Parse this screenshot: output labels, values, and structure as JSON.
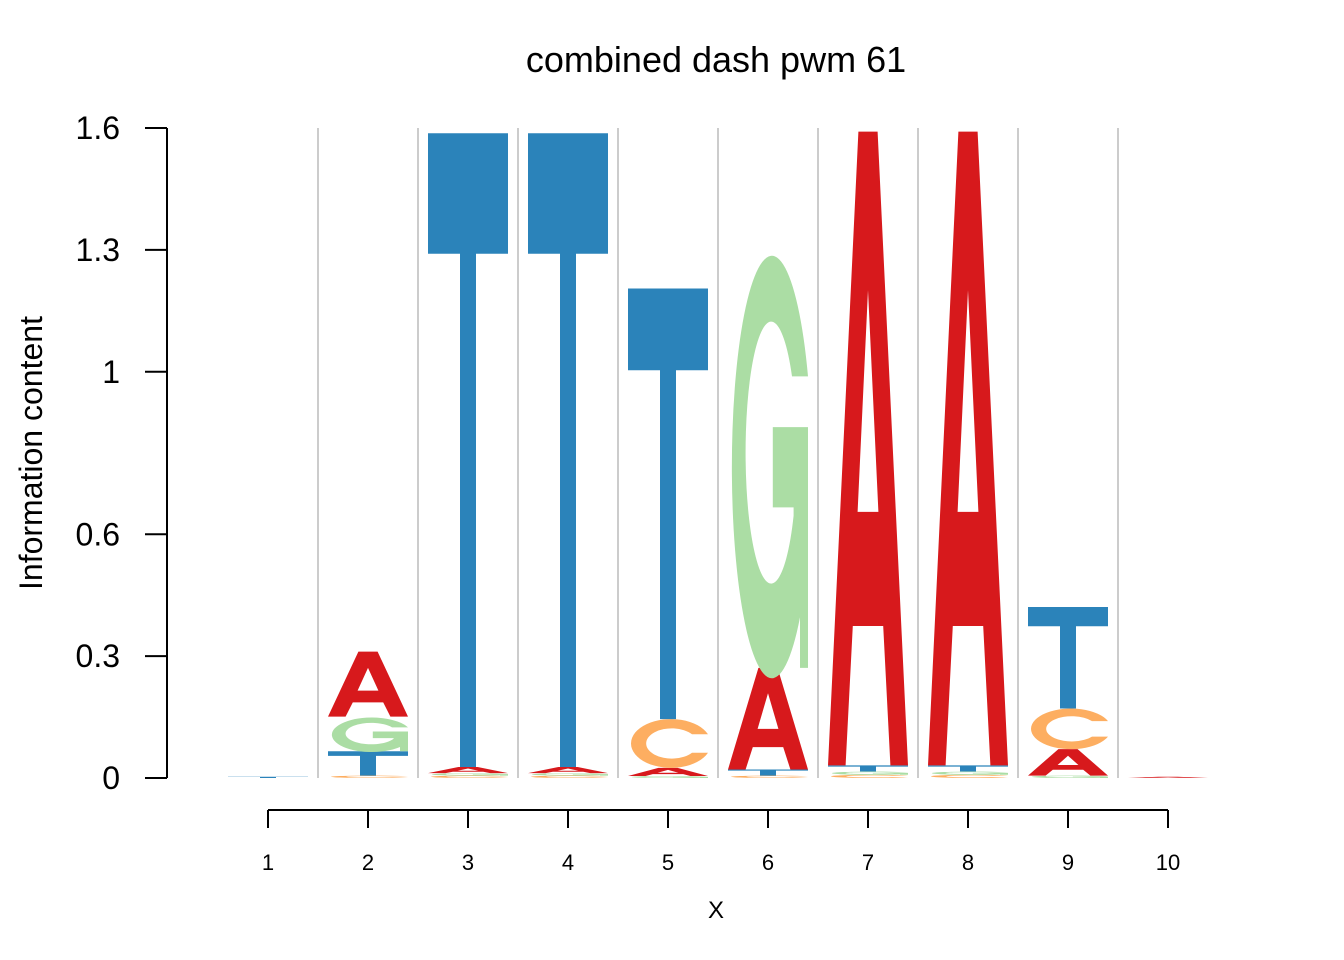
{
  "chart_data": {
    "type": "sequence-logo",
    "title": "combined dash pwm 61",
    "xlabel": "X",
    "ylabel": "Information content",
    "ylim": [
      0,
      1.6
    ],
    "ytick_values": [
      0,
      0.3,
      0.6,
      1.0,
      1.3,
      1.6
    ],
    "yticks": [
      "0",
      "0.3",
      "0.6",
      "1",
      "1.3",
      "1.6"
    ],
    "xticks": [
      "1",
      "2",
      "3",
      "4",
      "5",
      "6",
      "7",
      "8",
      "9",
      "10"
    ],
    "grid": "vertical lines between positions",
    "colors": {
      "A": "#d7191c",
      "C": "#fdae61",
      "G": "#abdda4",
      "T": "#2b83ba",
      "grid": "#cccccc"
    },
    "positions": [
      {
        "pos": 1,
        "stack": [
          {
            "letter": "T",
            "value": 0.003
          }
        ]
      },
      {
        "pos": 2,
        "stack": [
          {
            "letter": "C",
            "value": 0.006
          },
          {
            "letter": "T",
            "value": 0.06
          },
          {
            "letter": "G",
            "value": 0.085
          },
          {
            "letter": "A",
            "value": 0.16
          }
        ]
      },
      {
        "pos": 3,
        "stack": [
          {
            "letter": "C",
            "value": 0.006
          },
          {
            "letter": "G",
            "value": 0.006
          },
          {
            "letter": "A",
            "value": 0.015
          },
          {
            "letter": "T",
            "value": 1.56
          }
        ]
      },
      {
        "pos": 4,
        "stack": [
          {
            "letter": "C",
            "value": 0.006
          },
          {
            "letter": "G",
            "value": 0.006
          },
          {
            "letter": "A",
            "value": 0.015
          },
          {
            "letter": "T",
            "value": 1.56
          }
        ]
      },
      {
        "pos": 5,
        "stack": [
          {
            "letter": "G",
            "value": 0.005
          },
          {
            "letter": "A",
            "value": 0.02
          },
          {
            "letter": "C",
            "value": 0.12
          },
          {
            "letter": "T",
            "value": 1.06
          }
        ]
      },
      {
        "pos": 6,
        "stack": [
          {
            "letter": "C",
            "value": 0.006
          },
          {
            "letter": "T",
            "value": 0.015
          },
          {
            "letter": "A",
            "value": 0.25
          },
          {
            "letter": "G",
            "value": 1.04
          }
        ]
      },
      {
        "pos": 7,
        "stack": [
          {
            "letter": "C",
            "value": 0.008
          },
          {
            "letter": "G",
            "value": 0.008
          },
          {
            "letter": "T",
            "value": 0.015
          },
          {
            "letter": "A",
            "value": 1.56
          }
        ]
      },
      {
        "pos": 8,
        "stack": [
          {
            "letter": "C",
            "value": 0.008
          },
          {
            "letter": "G",
            "value": 0.008
          },
          {
            "letter": "T",
            "value": 0.015
          },
          {
            "letter": "A",
            "value": 1.56
          }
        ]
      },
      {
        "pos": 9,
        "stack": [
          {
            "letter": "G",
            "value": 0.006
          },
          {
            "letter": "A",
            "value": 0.065
          },
          {
            "letter": "C",
            "value": 0.1
          },
          {
            "letter": "T",
            "value": 0.25
          }
        ]
      },
      {
        "pos": 10,
        "stack": [
          {
            "letter": "A",
            "value": 0.003
          }
        ]
      }
    ]
  }
}
